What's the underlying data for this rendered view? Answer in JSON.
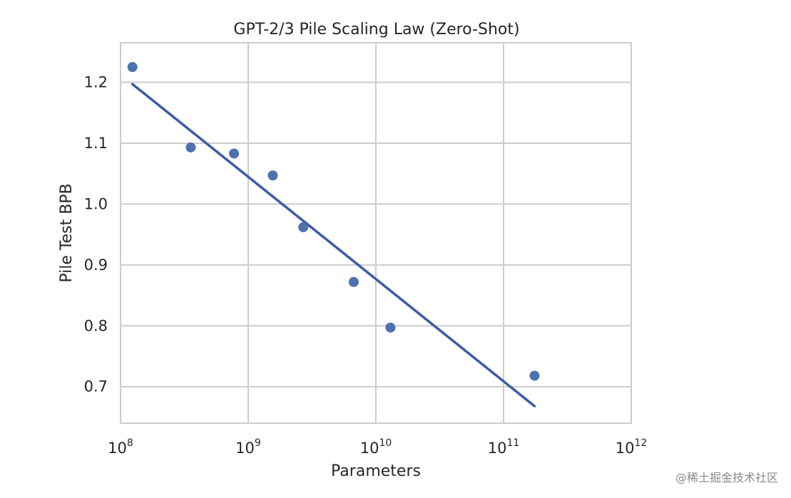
{
  "chart_data": {
    "type": "scatter",
    "title": "GPT-2/3 Pile Scaling Law (Zero-Shot)",
    "xlabel": "Parameters",
    "ylabel": "Pile Test BPB",
    "x_scale": "log",
    "xlim": [
      100000000,
      1000000000000
    ],
    "ylim": [
      0.64,
      1.265
    ],
    "grid": true,
    "x_ticks": [
      {
        "base": "10",
        "exp": "8"
      },
      {
        "base": "10",
        "exp": "9"
      },
      {
        "base": "10",
        "exp": "10"
      },
      {
        "base": "10",
        "exp": "11"
      },
      {
        "base": "10",
        "exp": "12"
      }
    ],
    "y_ticks": [
      "0.7",
      "0.8",
      "0.9",
      "1.0",
      "1.1",
      "1.2"
    ],
    "series": [
      {
        "mode": "markers",
        "color": "#4c72b0",
        "x": [
          124000000,
          355000000,
          774000000,
          1558000000,
          2700000000,
          6700000000,
          13000000000,
          175000000000
        ],
        "y": [
          1.225,
          1.093,
          1.083,
          1.047,
          0.962,
          0.872,
          0.797,
          0.718
        ]
      },
      {
        "mode": "line",
        "color": "#3b5ba5",
        "x": [
          124000000,
          175000000000
        ],
        "y": [
          1.197,
          0.668
        ]
      }
    ]
  },
  "watermark": "@稀土掘金技术社区"
}
